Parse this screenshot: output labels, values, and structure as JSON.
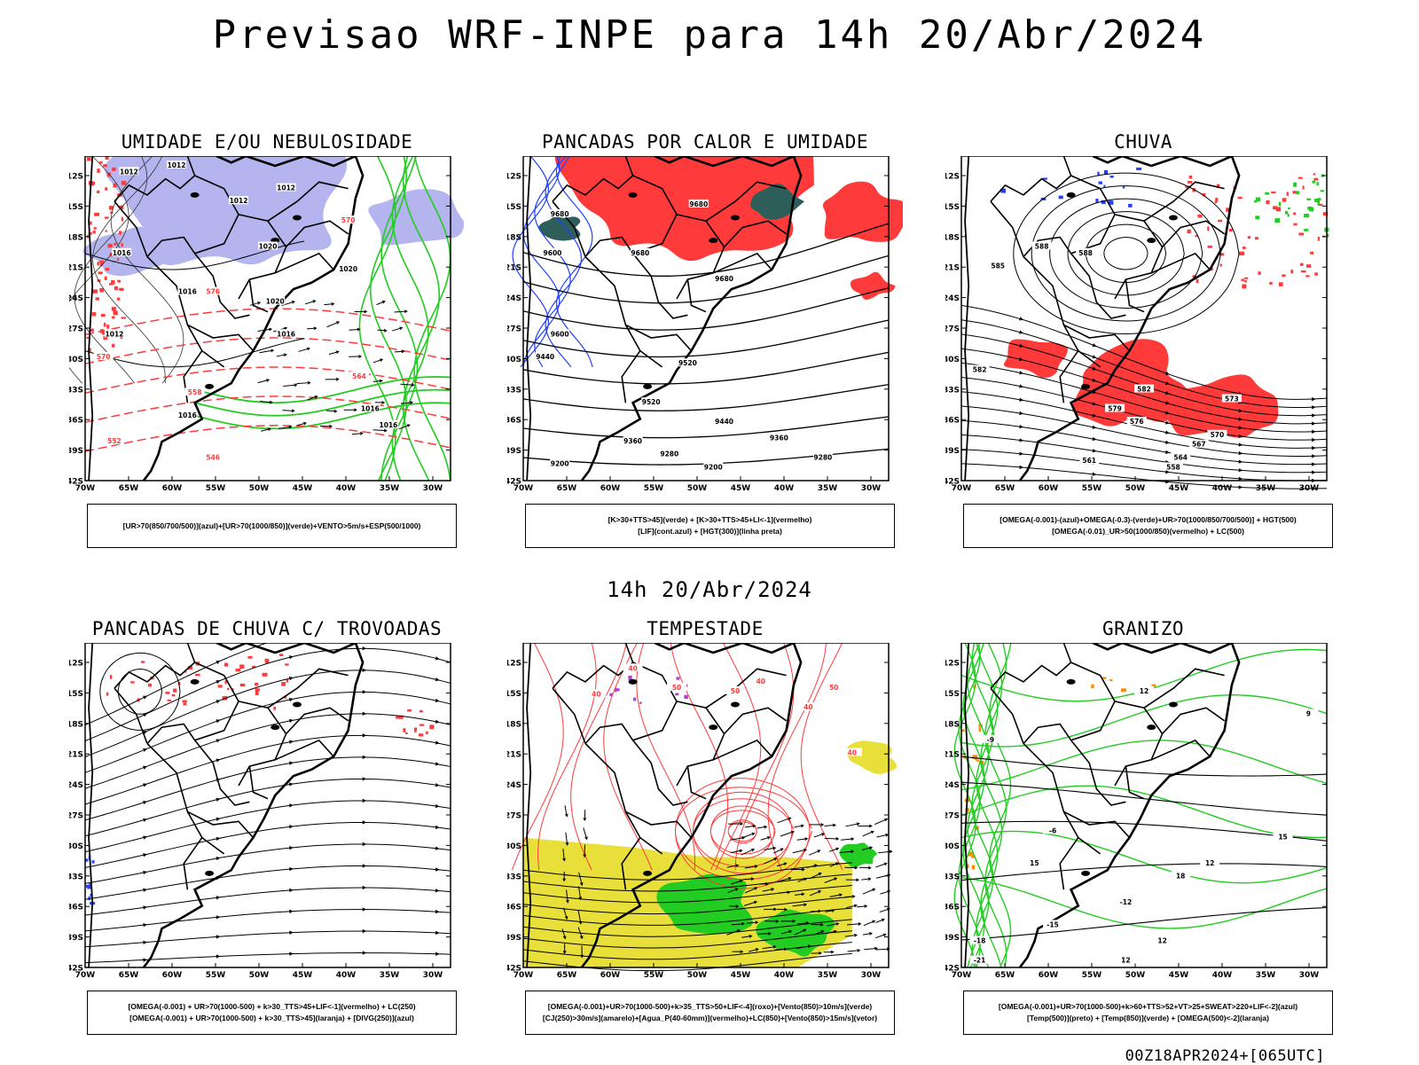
{
  "main_title": "Previsao WRF-INPE  para 14h 20/Abr/2024",
  "mid_title": "14h 20/Abr/2024",
  "footer": "00Z18APR2024+[065UTC]",
  "axes": {
    "lat_ticks": [
      "12S",
      "15S",
      "18S",
      "21S",
      "24S",
      "27S",
      "30S",
      "33S",
      "36S",
      "39S",
      "42S"
    ],
    "lon_ticks": [
      "70W",
      "65W",
      "60W",
      "55W",
      "50W",
      "45W",
      "40W",
      "35W",
      "30W"
    ]
  },
  "colors": {
    "blue_humidity": "#b4b4ee",
    "green": "#22cc22",
    "red": "#ff3a3a",
    "dark_teal": "#2e5e5a",
    "yellow": "#e8df3a",
    "orange": "#ff8c00",
    "purple": "#b040d0",
    "blue": "#2040ff"
  },
  "panels": [
    {
      "title": "UMIDADE E/OU NEBULOSIDADE",
      "legend": [
        "[UR>70(850/700/500)](azul)+[UR>70(1000/850)](verde)+VENTO>5m/s+ESP(500/1000)"
      ],
      "labels": [
        "1012",
        "1012",
        "1012",
        "1012",
        "1016",
        "1016",
        "1016",
        "1016",
        "1020",
        "1020",
        "1020",
        "1016",
        "1016",
        "1012",
        "576",
        "570",
        "564",
        "558",
        "552",
        "546",
        "570"
      ]
    },
    {
      "title": "PANCADAS POR CALOR E UMIDADE",
      "legend": [
        "[K>30+TTS>45](verde) + [K>30+TTS>45+LI<-1](vermelho)",
        "[LIF](cont.azul) + [HGT(300)](linha preta)"
      ],
      "labels": [
        "9680",
        "9680",
        "9600",
        "9680",
        "9680",
        "9600",
        "9520",
        "9520",
        "9440",
        "9440",
        "9360",
        "9360",
        "9280",
        "9280",
        "9200",
        "9200"
      ]
    },
    {
      "title": "CHUVA",
      "legend": [
        "[OMEGA(-0.001)-(azul)+OMEGA(-0.3)-(verde)+UR>70(1000/850/700/500)] + HGT(500)",
        "[OMEGA(-0.01)_UR>50(1000/850)(vermelho) + LC(500)"
      ],
      "labels": [
        "588",
        "588",
        "582",
        "579",
        "576",
        "573",
        "570",
        "567",
        "564",
        "561",
        "558",
        "585",
        "582"
      ]
    },
    {
      "title": "PANCADAS DE CHUVA C/ TROVOADAS",
      "legend": [
        "[OMEGA(-0.001) + UR>70(1000-500) + k>30_TTS>45+LIF<-1](vermelho) + LC(250)",
        "[OMEGA(-0.001) + UR>70(1000-500) + k>30_TTS>45](laranja) + [DIVG(250)](azul)"
      ],
      "labels": []
    },
    {
      "title": "TEMPESTADE",
      "legend": [
        "[OMEGA(-0.001)+UR>70(1000-500)+k>35_TTS>50+LIF<-4](roxo)+[Vento(850)>10m/s](verde)",
        "[CJ(250)>30m/s](amarelo)+[Agua_P(40-60mm)](vermelho)+LC(850)+[Vento(850)>15m/s](vetor)"
      ],
      "labels": [
        "40",
        "40",
        "50",
        "50",
        "40",
        "40",
        "50",
        "40"
      ]
    },
    {
      "title": "GRANIZO",
      "legend": [
        "[OMEGA(-0.001)+UR>70(1000-500)+k>60+TTS>52+VT>25+SWEAT>220+LIF<-2](azul)",
        "[Temp(500)](preto) + [Temp(850)](verde) + [OMEGA(500)<-2](laranja)"
      ],
      "labels": [
        "-9",
        "-6",
        "-12",
        "-15",
        "-18",
        "-21",
        "12",
        "15",
        "18",
        "12",
        "15",
        "12",
        "9",
        "12"
      ]
    }
  ]
}
